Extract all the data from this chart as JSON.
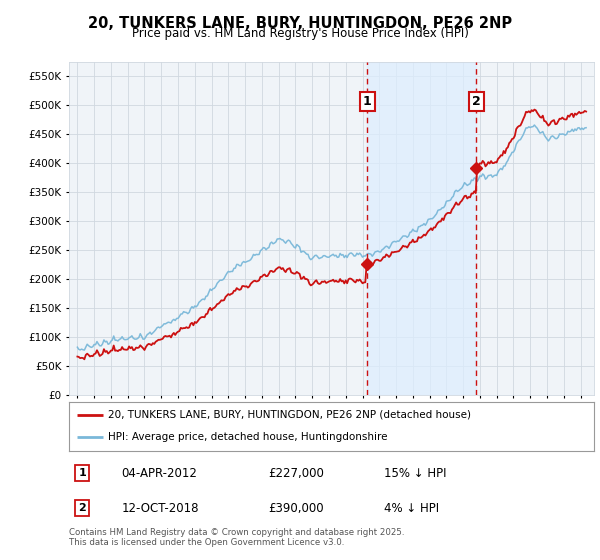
{
  "title": "20, TUNKERS LANE, BURY, HUNTINGDON, PE26 2NP",
  "subtitle": "Price paid vs. HM Land Registry's House Price Index (HPI)",
  "legend_line1": "20, TUNKERS LANE, BURY, HUNTINGDON, PE26 2NP (detached house)",
  "legend_line2": "HPI: Average price, detached house, Huntingdonshire",
  "sale1_date": "04-APR-2012",
  "sale1_price": "£227,000",
  "sale1_hpi": "15% ↓ HPI",
  "sale2_date": "12-OCT-2018",
  "sale2_price": "£390,000",
  "sale2_hpi": "4% ↓ HPI",
  "sale1_year": 2012.27,
  "sale2_year": 2018.79,
  "sale1_value": 227000,
  "sale2_value": 390000,
  "hpi_color": "#7ab8d9",
  "price_color": "#cc1111",
  "dashed_color": "#cc1111",
  "marker_box_color": "#cc1111",
  "shading_color": "#ddeeff",
  "chart_bg": "#f0f4f8",
  "background_color": "#ffffff",
  "grid_color": "#d0d8e0",
  "footer_text": "Contains HM Land Registry data © Crown copyright and database right 2025.\nThis data is licensed under the Open Government Licence v3.0.",
  "ylim": [
    0,
    575000
  ],
  "yticks": [
    0,
    50000,
    100000,
    150000,
    200000,
    250000,
    300000,
    350000,
    400000,
    450000,
    500000,
    550000
  ],
  "xlim": [
    1994.5,
    2025.8
  ]
}
